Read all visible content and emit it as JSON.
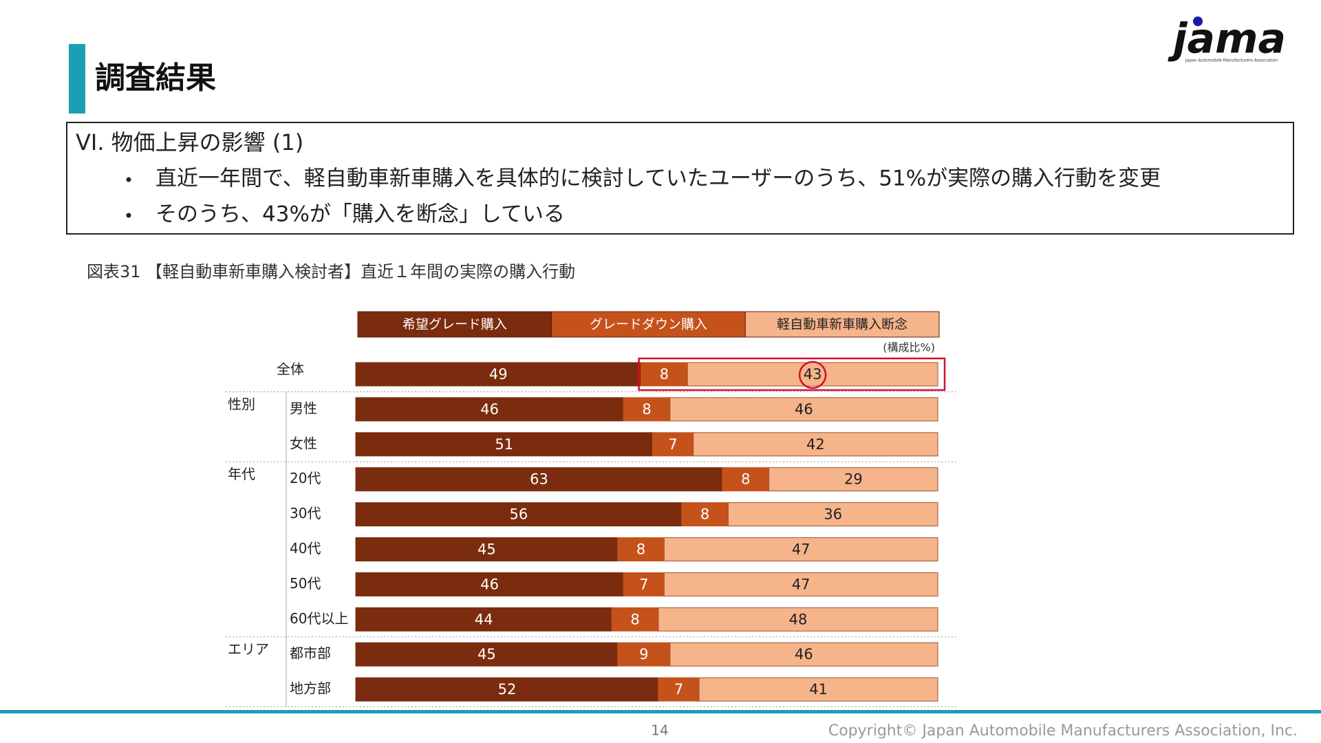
{
  "header": {
    "title": "調査結果",
    "logo": "jama",
    "logo_subtitle": "Japan Automobile Manufacturers Association"
  },
  "summary": {
    "heading": "VI. 物価上昇の影響 (1)",
    "bullets": [
      "直近一年間で、軽自動車新車購入を具体的に検討していたユーザーのうち、51%が実際の購入行動を変更",
      "そのうち、43%が「購入を断念」している"
    ]
  },
  "chart_data": {
    "type": "stacked-bar-horizontal",
    "title": "図表31 【軽自動車新車購入検討者】直近１年間の実際の購入行動",
    "unit_note": "(構成比%)",
    "categories": [
      "全体",
      "男性",
      "女性",
      "20代",
      "30代",
      "40代",
      "50代",
      "60代以上",
      "都市部",
      "地方部"
    ],
    "category_groups": [
      null,
      "性別",
      null,
      "年代",
      null,
      null,
      null,
      null,
      "エリア",
      null
    ],
    "xlim": [
      0,
      100
    ],
    "series": [
      {
        "name": "希望グレード購入",
        "color": "#7b2c0e",
        "values": [
          49,
          46,
          51,
          63,
          56,
          45,
          46,
          44,
          45,
          52
        ]
      },
      {
        "name": "グレードダウン購入",
        "color": "#c5521b",
        "values": [
          8,
          8,
          7,
          8,
          8,
          8,
          7,
          8,
          9,
          7
        ]
      },
      {
        "name": "軽自動車新車購入断念",
        "color": "#f6b48a",
        "values": [
          43,
          46,
          42,
          29,
          36,
          47,
          47,
          48,
          46,
          41
        ]
      }
    ]
  },
  "footer": {
    "page": "14",
    "copyright": "Copyright© Japan Automobile Manufacturers Association, Inc."
  }
}
